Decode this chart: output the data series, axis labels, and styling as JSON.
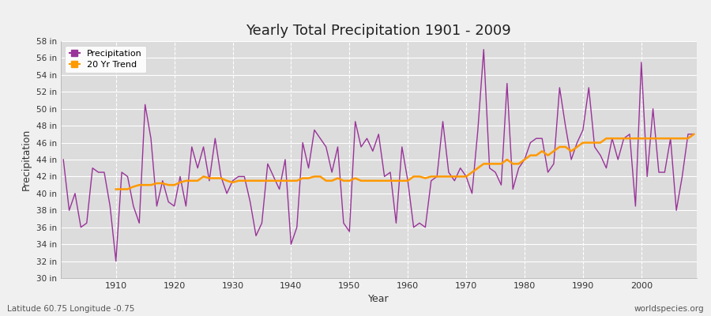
{
  "title": "Yearly Total Precipitation 1901 - 2009",
  "xlabel": "Year",
  "ylabel": "Precipitation",
  "fig_bg_color": "#f0f0f0",
  "plot_bg_color": "#dcdcdc",
  "precip_color": "#993399",
  "trend_color": "#ff9900",
  "precip_label": "Precipitation",
  "trend_label": "20 Yr Trend",
  "footer_left": "Latitude 60.75 Longitude -0.75",
  "footer_right": "worldspecies.org",
  "ylim_min": 30,
  "ylim_max": 58,
  "ytick_step": 2,
  "years": [
    1901,
    1902,
    1903,
    1904,
    1905,
    1906,
    1907,
    1908,
    1909,
    1910,
    1911,
    1912,
    1913,
    1914,
    1915,
    1916,
    1917,
    1918,
    1919,
    1920,
    1921,
    1922,
    1923,
    1924,
    1925,
    1926,
    1927,
    1928,
    1929,
    1930,
    1931,
    1932,
    1933,
    1934,
    1935,
    1936,
    1937,
    1938,
    1939,
    1940,
    1941,
    1942,
    1943,
    1944,
    1945,
    1946,
    1947,
    1948,
    1949,
    1950,
    1951,
    1952,
    1953,
    1954,
    1955,
    1956,
    1957,
    1958,
    1959,
    1960,
    1961,
    1962,
    1963,
    1964,
    1965,
    1966,
    1967,
    1968,
    1969,
    1970,
    1971,
    1972,
    1973,
    1974,
    1975,
    1976,
    1977,
    1978,
    1979,
    1980,
    1981,
    1982,
    1983,
    1984,
    1985,
    1986,
    1987,
    1988,
    1989,
    1990,
    1991,
    1992,
    1993,
    1994,
    1995,
    1996,
    1997,
    1998,
    1999,
    2000,
    2001,
    2002,
    2003,
    2004,
    2005,
    2006,
    2007,
    2008,
    2009
  ],
  "precip": [
    44.0,
    38.0,
    40.0,
    36.0,
    36.5,
    43.0,
    42.5,
    42.5,
    38.5,
    32.0,
    42.5,
    42.0,
    38.5,
    36.5,
    50.5,
    46.5,
    38.5,
    41.5,
    39.0,
    38.5,
    42.0,
    38.5,
    45.5,
    43.0,
    45.5,
    41.5,
    46.5,
    42.0,
    40.0,
    41.5,
    42.0,
    42.0,
    39.0,
    35.0,
    36.5,
    43.5,
    42.0,
    40.5,
    44.0,
    34.0,
    36.0,
    46.0,
    43.0,
    47.5,
    46.5,
    45.5,
    42.5,
    45.5,
    36.5,
    35.5,
    48.5,
    45.5,
    46.5,
    45.0,
    47.0,
    42.0,
    42.5,
    36.5,
    45.5,
    41.5,
    36.0,
    36.5,
    36.0,
    41.5,
    42.0,
    48.5,
    42.5,
    41.5,
    43.0,
    42.0,
    40.0,
    47.5,
    57.0,
    43.0,
    42.5,
    41.0,
    53.0,
    40.5,
    43.0,
    44.0,
    46.0,
    46.5,
    46.5,
    42.5,
    43.5,
    52.5,
    48.0,
    44.0,
    46.0,
    47.5,
    52.5,
    45.5,
    44.5,
    43.0,
    46.5,
    44.0,
    46.5,
    47.0,
    38.5,
    55.5,
    42.0,
    50.0,
    42.5,
    42.5,
    46.5,
    38.0,
    42.0,
    47.0,
    47.0
  ],
  "trend": [
    null,
    null,
    null,
    null,
    null,
    null,
    null,
    null,
    null,
    40.5,
    40.5,
    40.5,
    40.8,
    41.0,
    41.0,
    41.0,
    41.2,
    41.2,
    41.0,
    41.0,
    41.3,
    41.5,
    41.5,
    41.5,
    42.0,
    41.8,
    41.8,
    41.8,
    41.5,
    41.3,
    41.5,
    41.5,
    41.5,
    41.5,
    41.5,
    41.5,
    41.5,
    41.5,
    41.5,
    41.5,
    41.5,
    41.8,
    41.8,
    42.0,
    42.0,
    41.5,
    41.5,
    41.8,
    41.5,
    41.5,
    41.8,
    41.5,
    41.5,
    41.5,
    41.5,
    41.5,
    41.5,
    41.5,
    41.5,
    41.5,
    42.0,
    42.0,
    41.8,
    42.0,
    42.0,
    42.0,
    42.0,
    42.0,
    42.0,
    42.0,
    42.5,
    43.0,
    43.5,
    43.5,
    43.5,
    43.5,
    44.0,
    43.5,
    43.5,
    44.0,
    44.5,
    44.5,
    45.0,
    44.5,
    45.0,
    45.5,
    45.5,
    45.0,
    45.5,
    46.0,
    46.0,
    46.0,
    46.0,
    46.5,
    46.5,
    46.5,
    46.5,
    46.5,
    46.5,
    46.5,
    46.5,
    46.5,
    46.5,
    46.5,
    46.5,
    46.5,
    46.5,
    46.5,
    47.0
  ]
}
